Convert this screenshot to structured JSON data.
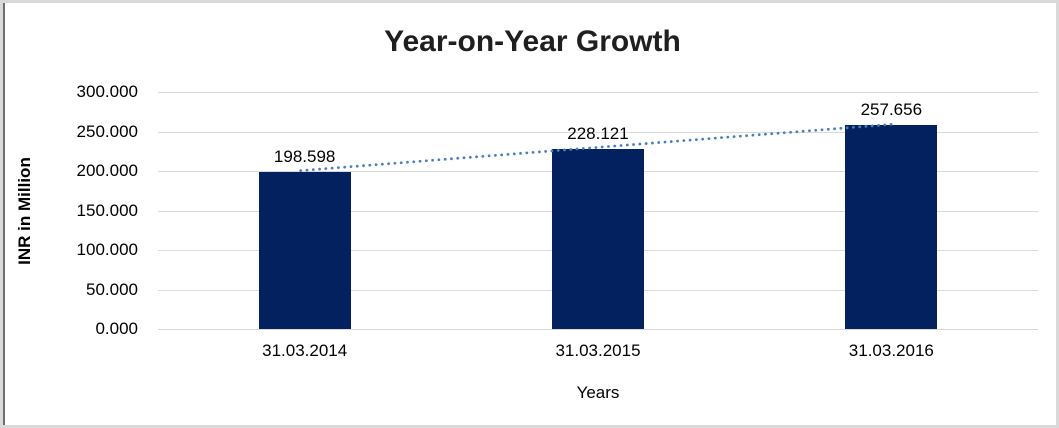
{
  "chart_data": {
    "type": "bar",
    "title": "Year-on-Year Growth",
    "xlabel": "Years",
    "ylabel": "INR in Million",
    "categories": [
      "31.03.2014",
      "31.03.2015",
      "31.03.2016"
    ],
    "values": [
      198.598,
      228.121,
      257.656
    ],
    "value_labels": [
      "198.598",
      "228.121",
      "257.656"
    ],
    "ylim": [
      0,
      300
    ],
    "ytick_values": [
      0,
      50,
      100,
      150,
      200,
      250,
      300
    ],
    "ytick_labels": [
      "0.000",
      "50.000",
      "100.000",
      "150.000",
      "200.000",
      "250.000",
      "300.000"
    ],
    "grid": "horizontal",
    "legend": "none",
    "bar_color": "#03215f",
    "gridline_color": "#d9d9d9",
    "trendline": {
      "type": "linear",
      "style": "dotted",
      "color": "#4a7ebb",
      "from_value": 198.598,
      "to_value": 257.656
    }
  }
}
